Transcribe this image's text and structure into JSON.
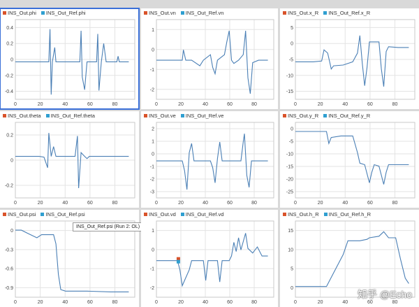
{
  "colors": {
    "ref": "#2f9fd0",
    "out": "#d9532a",
    "line": "#4a7fb5",
    "grid": "#e3e3e3"
  },
  "panels": [
    {
      "id": "phi",
      "legend": [
        "INS_Out.phi",
        "INS_Out_Ref.phi"
      ],
      "selected": true,
      "yticks": [
        "0.4",
        "0.2",
        "0",
        "-0.2",
        "-0.4"
      ],
      "xticks": [
        "0",
        "20",
        "40",
        "60",
        "80"
      ],
      "tooltip": ""
    },
    {
      "id": "vn",
      "legend": [
        "INS_Out.vn",
        "INS_Out_Ref.vn"
      ],
      "selected": false,
      "yticks": [
        "1",
        "0",
        "-1",
        "-2"
      ],
      "xticks": [
        "0",
        "20",
        "40",
        "60",
        "80"
      ],
      "tooltip": ""
    },
    {
      "id": "x_R",
      "legend": [
        "INS_Out.x_R",
        "INS_Out_Ref.x_R"
      ],
      "selected": false,
      "yticks": [
        "5",
        "0",
        "-5",
        "-10",
        "-15"
      ],
      "xticks": [
        "0",
        "20",
        "40",
        "60",
        "80"
      ],
      "tooltip": ""
    },
    {
      "id": "theta",
      "legend": [
        "INS_Out.theta",
        "INS_Out_Ref.theta"
      ],
      "selected": false,
      "yticks": [
        "0.2",
        "0",
        "-0.2"
      ],
      "xticks": [
        "0",
        "20",
        "40",
        "60",
        "80"
      ],
      "tooltip": ""
    },
    {
      "id": "ve",
      "legend": [
        "INS_Out.ve",
        "INS_Out_Ref.ve"
      ],
      "selected": false,
      "yticks": [
        "2",
        "1",
        "0",
        "-1",
        "-2",
        "-3"
      ],
      "xticks": [
        "0",
        "20",
        "40",
        "60",
        "80"
      ],
      "tooltip": ""
    },
    {
      "id": "y_R",
      "legend": [
        "INS_Out.y_R",
        "INS_Out_Ref.y_R"
      ],
      "selected": false,
      "yticks": [
        "0",
        "-5",
        "-10",
        "-15",
        "-20",
        "-25"
      ],
      "xticks": [
        "0",
        "20",
        "40",
        "60",
        "80"
      ],
      "tooltip": ""
    },
    {
      "id": "psi",
      "legend": [
        "INS_Out.psi",
        "INS_Out_Ref.psi"
      ],
      "selected": false,
      "yticks": [
        "0",
        "-0.3",
        "-0.6",
        "-0.9"
      ],
      "xticks": [
        "0",
        "20",
        "40",
        "60",
        "80"
      ],
      "tooltip": "INS_Out_Ref.psi (Run 2: OL)"
    },
    {
      "id": "vd",
      "legend": [
        "INS_Out.vd",
        "INS_Out_Ref.vd"
      ],
      "selected": false,
      "yticks": [
        "1",
        "0",
        "-1",
        "-2"
      ],
      "xticks": [
        "0",
        "20",
        "40",
        "60",
        "80"
      ],
      "tooltip": ""
    },
    {
      "id": "h_R",
      "legend": [
        "INS_Out.h_R",
        "INS_Out_Ref.h_R"
      ],
      "selected": false,
      "yticks": [
        "15",
        "10",
        "5",
        "0"
      ],
      "xticks": [
        "0",
        "20",
        "40",
        "60",
        "80"
      ],
      "tooltip": ""
    }
  ],
  "watermark": "知乎 @Echo"
}
